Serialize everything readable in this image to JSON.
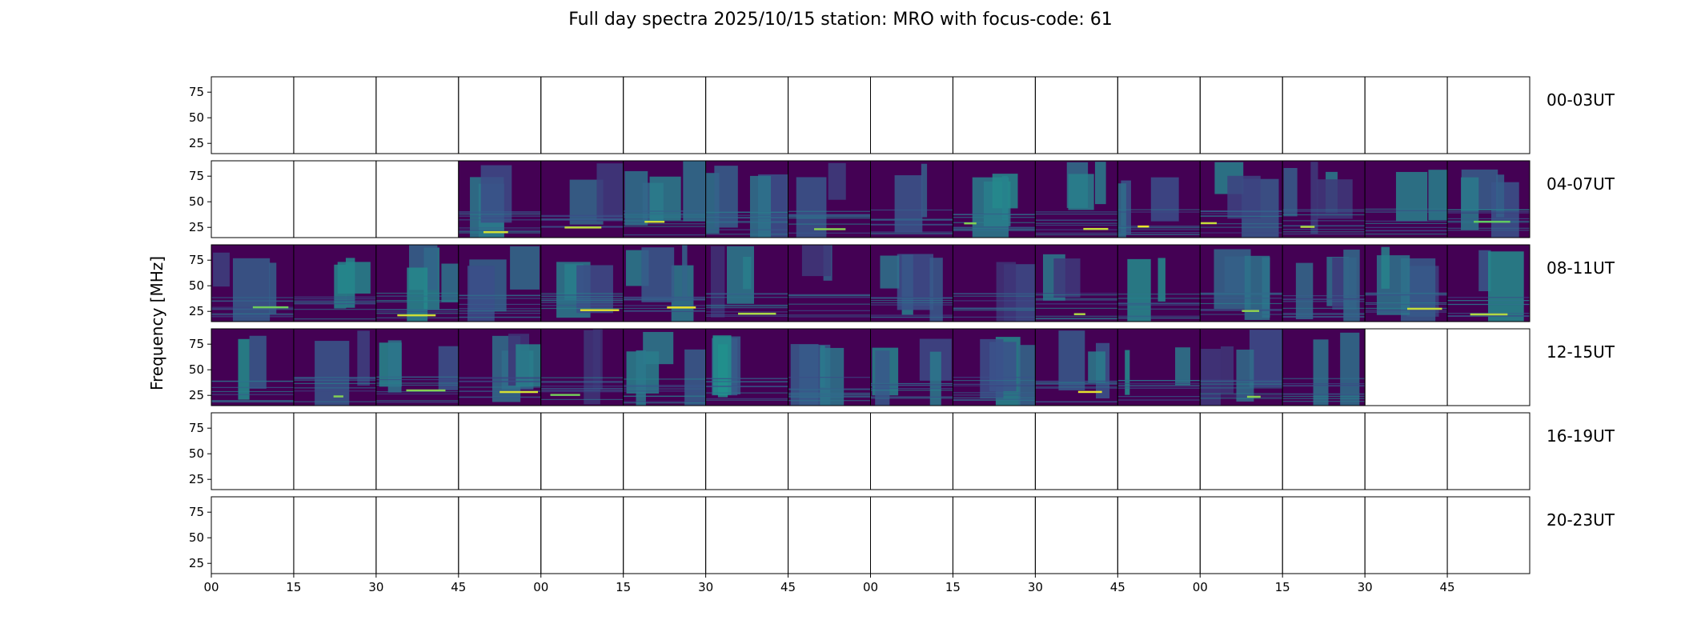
{
  "chart_data": {
    "type": "heatmap",
    "title": "Full day spectra 2025/10/15 station: MRO with focus-code: 61",
    "ylabel": "Frequency [MHz]",
    "xlabel": "",
    "ytick_labels": [
      "25",
      "50",
      "75"
    ],
    "ylim": [
      15,
      90
    ],
    "xtick_labels": [
      "00",
      "15",
      "30",
      "45",
      "00",
      "15",
      "30",
      "45",
      "00",
      "15",
      "30",
      "45",
      "00",
      "15",
      "30",
      "45"
    ],
    "rows": [
      {
        "label": "00-03UT",
        "panels": [
          0,
          0,
          0,
          0,
          0,
          0,
          0,
          0,
          0,
          0,
          0,
          0,
          0,
          0,
          0,
          0
        ]
      },
      {
        "label": "04-07UT",
        "panels": [
          0,
          0,
          0,
          1,
          1,
          1,
          1,
          1,
          1,
          1,
          1,
          1,
          1,
          1,
          1,
          1
        ]
      },
      {
        "label": "08-11UT",
        "panels": [
          1,
          1,
          1,
          1,
          1,
          1,
          1,
          1,
          1,
          1,
          1,
          1,
          1,
          1,
          1,
          1
        ]
      },
      {
        "label": "12-15UT",
        "panels": [
          1,
          1,
          1,
          1,
          1,
          1,
          1,
          1,
          1,
          1,
          1,
          1,
          1,
          1,
          0,
          0
        ]
      },
      {
        "label": "16-19UT",
        "panels": [
          0,
          0,
          0,
          0,
          0,
          0,
          0,
          0,
          0,
          0,
          0,
          0,
          0,
          0,
          0,
          0
        ]
      },
      {
        "label": "20-23UT",
        "panels": [
          0,
          0,
          0,
          0,
          0,
          0,
          0,
          0,
          0,
          0,
          0,
          0,
          0,
          0,
          0,
          0
        ]
      }
    ],
    "colormap": [
      "#440154",
      "#3b528b",
      "#21918c",
      "#5ec962",
      "#fde725"
    ],
    "panel_data_note": "1 = spectrum present, 0 = no data"
  }
}
